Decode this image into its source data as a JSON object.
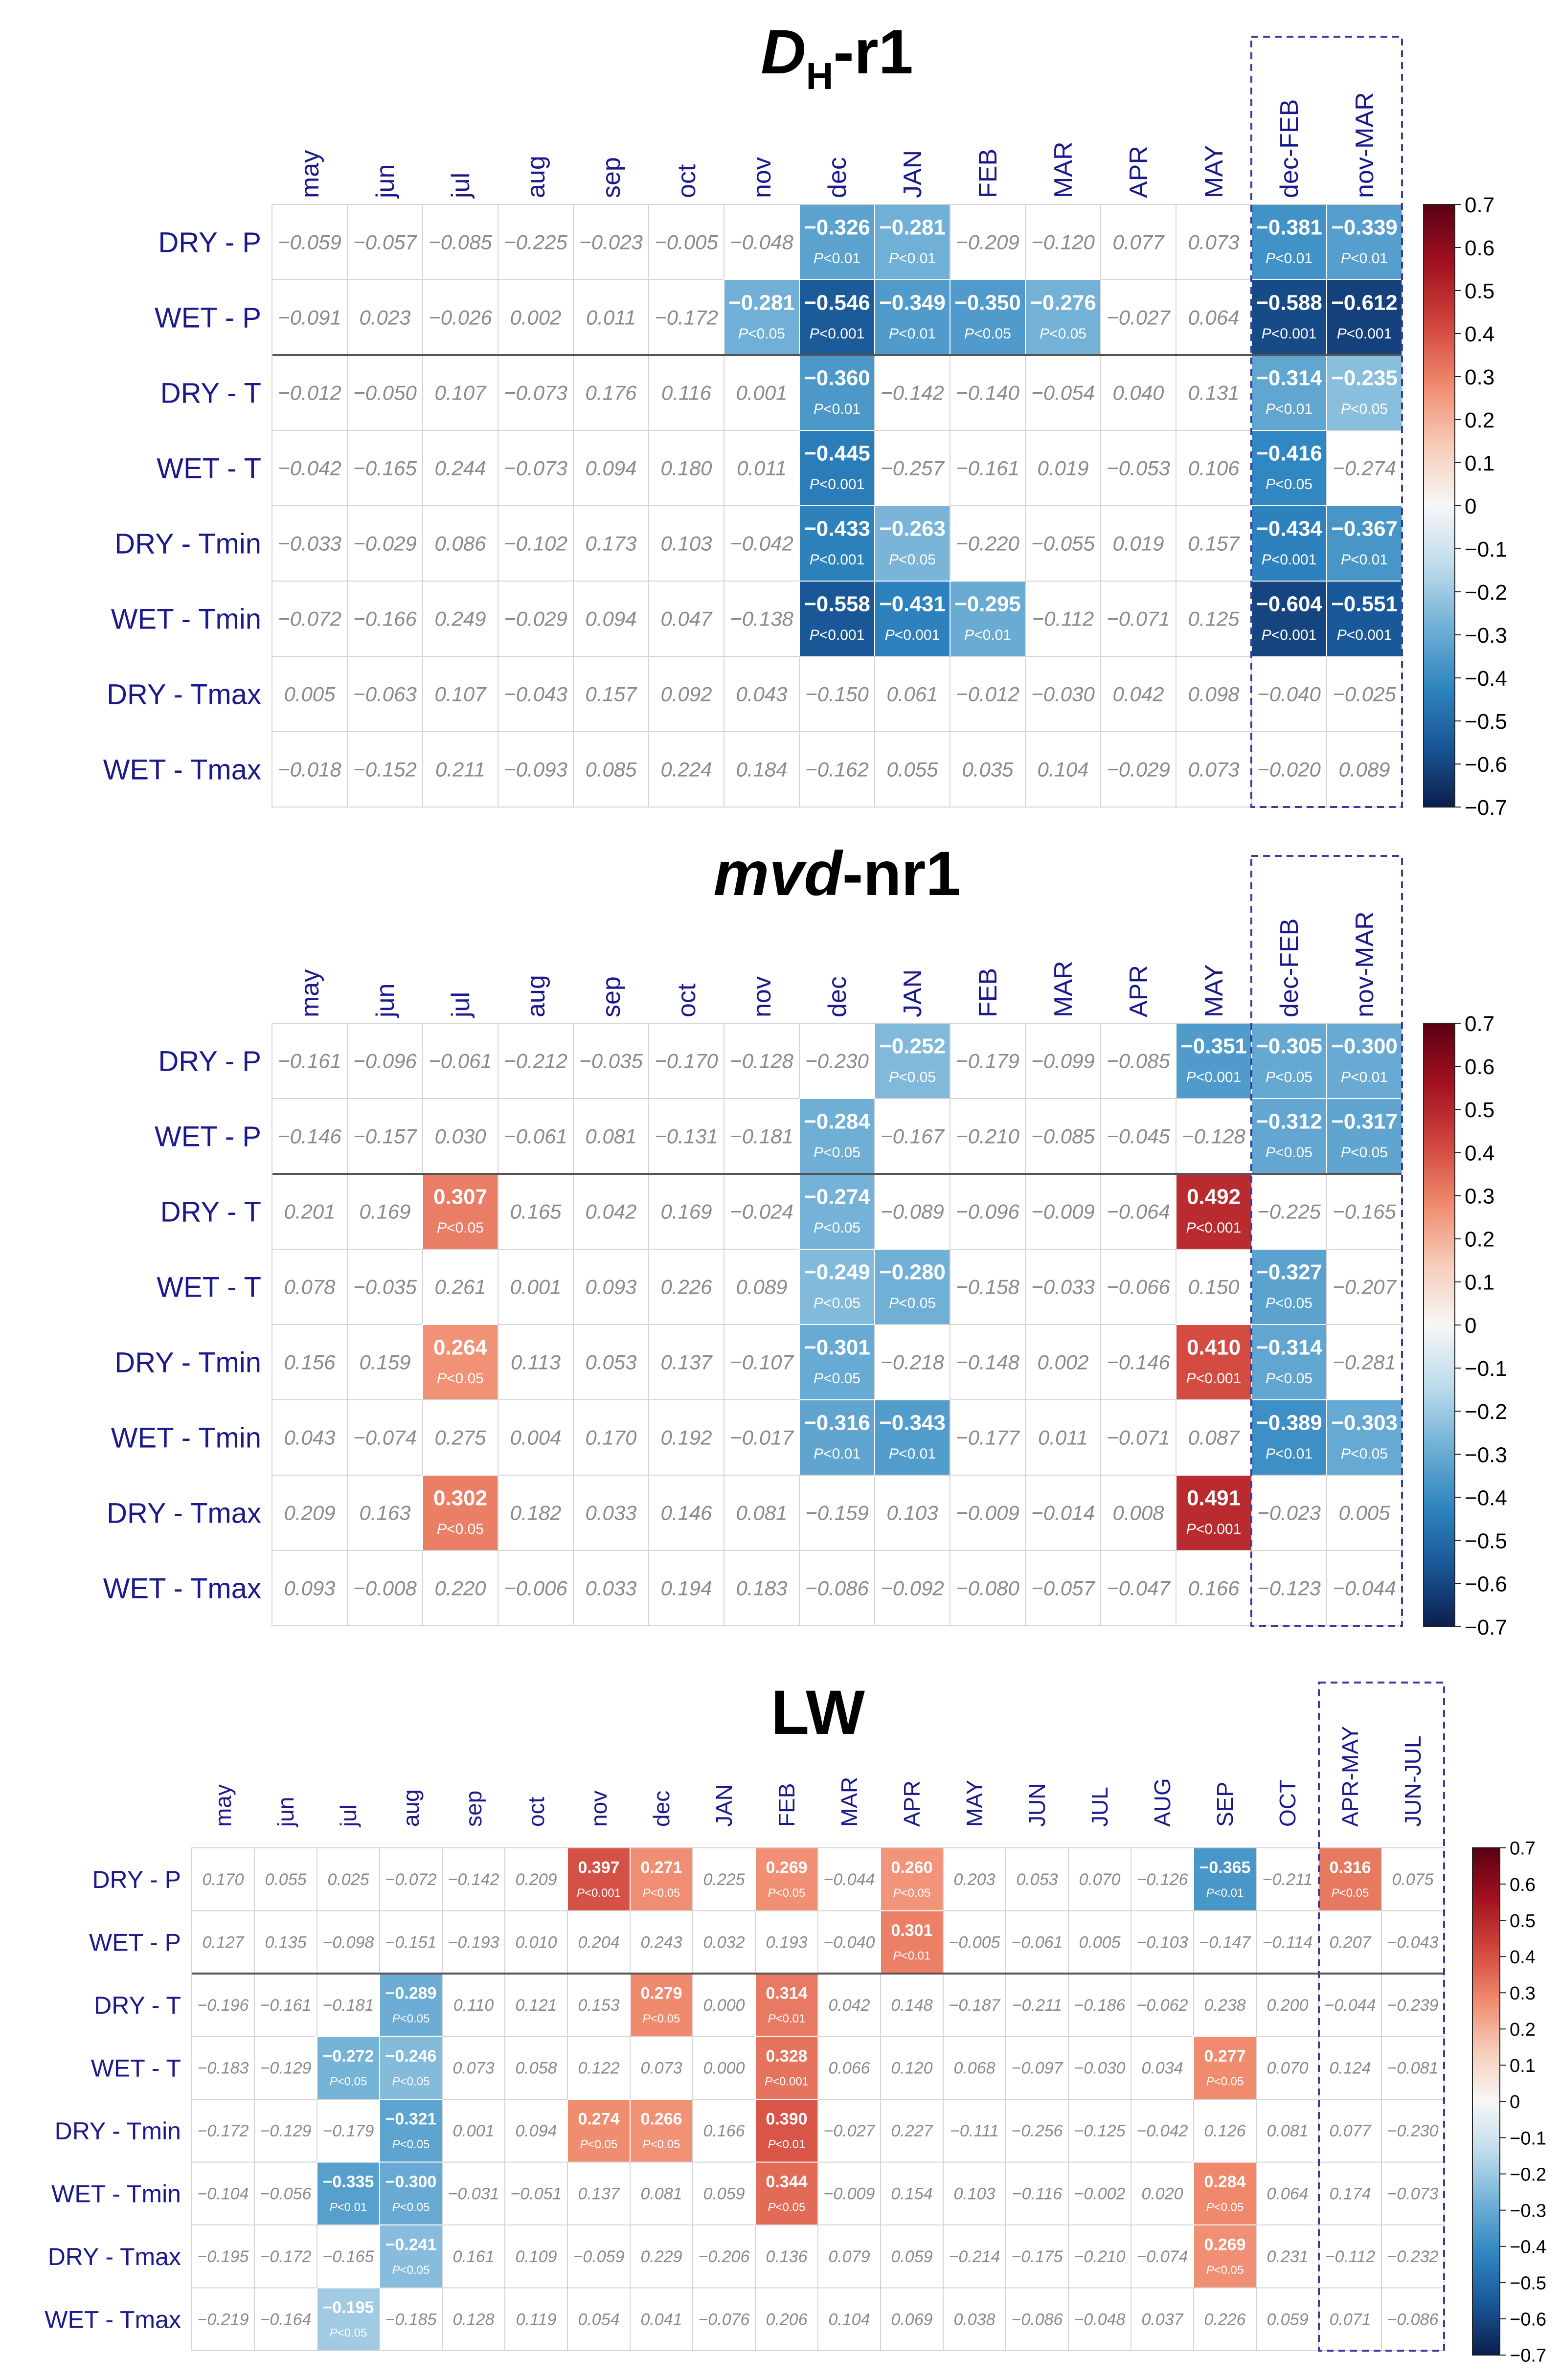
{
  "colors": {
    "label": "#1a1a8c",
    "title": "#000000",
    "grid": "#d4d4d4",
    "separator": "#555555",
    "dashed": "#3a3aa0",
    "nonsig_text": "#8a8a8a",
    "colormap": [
      "#0b1e4d",
      "#195696",
      "#2f86c0",
      "#71b0d6",
      "#bfdcec",
      "#f7f7f7",
      "#f7cdb9",
      "#f08a6e",
      "#d1463d",
      "#a2111f",
      "#5a0013"
    ]
  },
  "chart_data": [
    {
      "type": "heatmap",
      "title_italic": "D",
      "title_sub": "H",
      "title_rest": "-r1",
      "columns": [
        "may",
        "jun",
        "jul",
        "aug",
        "sep",
        "oct",
        "nov",
        "dec",
        "JAN",
        "FEB",
        "MAR",
        "APR",
        "MAY",
        "dec-FEB",
        "nov-MAR"
      ],
      "rows": [
        "DRY - P",
        "WET - P",
        "DRY - T",
        "WET - T",
        "DRY - Tmin",
        "WET - Tmin",
        "DRY - Tmax",
        "WET - Tmax"
      ],
      "values": [
        [
          "−0.059",
          "−0.057",
          "−0.085",
          "−0.225",
          "−0.023",
          "−0.005",
          "−0.048",
          "−0.326",
          "−0.281",
          "−0.209",
          "−0.120",
          "0.077",
          "0.073",
          "−0.381",
          "−0.339"
        ],
        [
          "−0.091",
          "0.023",
          "−0.026",
          "0.002",
          "0.011",
          "−0.172",
          "−0.281",
          "−0.546",
          "−0.349",
          "−0.350",
          "−0.276",
          "−0.027",
          "0.064",
          "−0.588",
          "−0.612"
        ],
        [
          "−0.012",
          "−0.050",
          "0.107",
          "−0.073",
          "0.176",
          "0.116",
          "0.001",
          "−0.360",
          "−0.142",
          "−0.140",
          "−0.054",
          "0.040",
          "0.131",
          "−0.314",
          "−0.235"
        ],
        [
          "−0.042",
          "−0.165",
          "0.244",
          "−0.073",
          "0.094",
          "0.180",
          "0.011",
          "−0.445",
          "−0.257",
          "−0.161",
          "0.019",
          "−0.053",
          "0.106",
          "−0.416",
          "−0.274"
        ],
        [
          "−0.033",
          "−0.029",
          "0.086",
          "−0.102",
          "0.173",
          "0.103",
          "−0.042",
          "−0.433",
          "−0.263",
          "−0.220",
          "−0.055",
          "0.019",
          "0.157",
          "−0.434",
          "−0.367"
        ],
        [
          "−0.072",
          "−0.166",
          "0.249",
          "−0.029",
          "0.094",
          "0.047",
          "−0.138",
          "−0.558",
          "−0.431",
          "−0.295",
          "−0.112",
          "−0.071",
          "0.125",
          "−0.604",
          "−0.551"
        ],
        [
          "0.005",
          "−0.063",
          "0.107",
          "−0.043",
          "0.157",
          "0.092",
          "0.043",
          "−0.150",
          "0.061",
          "−0.012",
          "−0.030",
          "0.042",
          "0.098",
          "−0.040",
          "−0.025"
        ],
        [
          "−0.018",
          "−0.152",
          "0.211",
          "−0.093",
          "0.085",
          "0.224",
          "0.184",
          "−0.162",
          "0.055",
          "0.035",
          "0.104",
          "−0.029",
          "0.073",
          "−0.020",
          "0.089"
        ]
      ],
      "significant": [
        {
          "row": 0,
          "col": 7,
          "p": "P<0.01"
        },
        {
          "row": 0,
          "col": 8,
          "p": "P<0.01"
        },
        {
          "row": 0,
          "col": 13,
          "p": "P<0.01"
        },
        {
          "row": 0,
          "col": 14,
          "p": "P<0.01"
        },
        {
          "row": 1,
          "col": 6,
          "p": "P<0.05"
        },
        {
          "row": 1,
          "col": 7,
          "p": "P<0.001"
        },
        {
          "row": 1,
          "col": 8,
          "p": "P<0.01"
        },
        {
          "row": 1,
          "col": 9,
          "p": "P<0.05"
        },
        {
          "row": 1,
          "col": 10,
          "p": "P<0.05"
        },
        {
          "row": 1,
          "col": 13,
          "p": "P<0.001"
        },
        {
          "row": 1,
          "col": 14,
          "p": "P<0.001"
        },
        {
          "row": 2,
          "col": 7,
          "p": "P<0.01"
        },
        {
          "row": 2,
          "col": 13,
          "p": "P<0.01"
        },
        {
          "row": 2,
          "col": 14,
          "p": "P<0.05"
        },
        {
          "row": 3,
          "col": 7,
          "p": "P<0.001"
        },
        {
          "row": 3,
          "col": 13,
          "p": "P<0.05"
        },
        {
          "row": 4,
          "col": 7,
          "p": "P<0.001"
        },
        {
          "row": 4,
          "col": 8,
          "p": "P<0.05"
        },
        {
          "row": 4,
          "col": 13,
          "p": "P<0.001"
        },
        {
          "row": 4,
          "col": 14,
          "p": "P<0.01"
        },
        {
          "row": 5,
          "col": 7,
          "p": "P<0.001"
        },
        {
          "row": 5,
          "col": 8,
          "p": "P<0.001"
        },
        {
          "row": 5,
          "col": 9,
          "p": "P<0.01"
        },
        {
          "row": 5,
          "col": 13,
          "p": "P<0.001"
        },
        {
          "row": 5,
          "col": 14,
          "p": "P<0.001"
        }
      ],
      "colorbar": {
        "min": -0.7,
        "max": 0.7,
        "ticks": [
          "0.7",
          "0.6",
          "0.5",
          "0.4",
          "0.3",
          "0.2",
          "0.1",
          "0",
          "−0.1",
          "−0.2",
          "−0.3",
          "−0.4",
          "−0.5",
          "−0.6",
          "−0.7"
        ]
      },
      "dashed_cols": [
        13,
        14
      ],
      "separator_after_row": 1
    },
    {
      "type": "heatmap",
      "title_italic": "mvd",
      "title_sub": "",
      "title_rest": "-nr1",
      "columns": [
        "may",
        "jun",
        "jul",
        "aug",
        "sep",
        "oct",
        "nov",
        "dec",
        "JAN",
        "FEB",
        "MAR",
        "APR",
        "MAY",
        "dec-FEB",
        "nov-MAR"
      ],
      "rows": [
        "DRY - P",
        "WET - P",
        "DRY - T",
        "WET - T",
        "DRY - Tmin",
        "WET - Tmin",
        "DRY - Tmax",
        "WET - Tmax"
      ],
      "values": [
        [
          "−0.161",
          "−0.096",
          "−0.061",
          "−0.212",
          "−0.035",
          "−0.170",
          "−0.128",
          "−0.230",
          "−0.252",
          "−0.179",
          "−0.099",
          "−0.085",
          "−0.351",
          "−0.305",
          "−0.300"
        ],
        [
          "−0.146",
          "−0.157",
          "0.030",
          "−0.061",
          "0.081",
          "−0.131",
          "−0.181",
          "−0.284",
          "−0.167",
          "−0.210",
          "−0.085",
          "−0.045",
          "−0.128",
          "−0.312",
          "−0.317"
        ],
        [
          "0.201",
          "0.169",
          "0.307",
          "0.165",
          "0.042",
          "0.169",
          "−0.024",
          "−0.274",
          "−0.089",
          "−0.096",
          "−0.009",
          "−0.064",
          "0.492",
          "−0.225",
          "−0.165"
        ],
        [
          "0.078",
          "−0.035",
          "0.261",
          "0.001",
          "0.093",
          "0.226",
          "0.089",
          "−0.249",
          "−0.280",
          "−0.158",
          "−0.033",
          "−0.066",
          "0.150",
          "−0.327",
          "−0.207"
        ],
        [
          "0.156",
          "0.159",
          "0.264",
          "0.113",
          "0.053",
          "0.137",
          "−0.107",
          "−0.301",
          "−0.218",
          "−0.148",
          "0.002",
          "−0.146",
          "0.410",
          "−0.314",
          "−0.281"
        ],
        [
          "0.043",
          "−0.074",
          "0.275",
          "0.004",
          "0.170",
          "0.192",
          "−0.017",
          "−0.316",
          "−0.343",
          "−0.177",
          "0.011",
          "−0.071",
          "0.087",
          "−0.389",
          "−0.303"
        ],
        [
          "0.209",
          "0.163",
          "0.302",
          "0.182",
          "0.033",
          "0.146",
          "0.081",
          "−0.159",
          "0.103",
          "−0.009",
          "−0.014",
          "0.008",
          "0.491",
          "−0.023",
          "0.005"
        ],
        [
          "0.093",
          "−0.008",
          "0.220",
          "−0.006",
          "0.033",
          "0.194",
          "0.183",
          "−0.086",
          "−0.092",
          "−0.080",
          "−0.057",
          "−0.047",
          "0.166",
          "−0.123",
          "−0.044"
        ]
      ],
      "significant": [
        {
          "row": 0,
          "col": 8,
          "p": "P<0.05"
        },
        {
          "row": 0,
          "col": 12,
          "p": "P<0.001"
        },
        {
          "row": 0,
          "col": 13,
          "p": "P<0.05"
        },
        {
          "row": 0,
          "col": 14,
          "p": "P<0.01"
        },
        {
          "row": 1,
          "col": 7,
          "p": "P<0.05"
        },
        {
          "row": 1,
          "col": 13,
          "p": "P<0.05"
        },
        {
          "row": 1,
          "col": 14,
          "p": "P<0.05"
        },
        {
          "row": 2,
          "col": 2,
          "p": "P<0.05"
        },
        {
          "row": 2,
          "col": 7,
          "p": "P<0.05"
        },
        {
          "row": 2,
          "col": 12,
          "p": "P<0.001"
        },
        {
          "row": 3,
          "col": 7,
          "p": "P<0.05"
        },
        {
          "row": 3,
          "col": 8,
          "p": "P<0.05"
        },
        {
          "row": 3,
          "col": 13,
          "p": "P<0.05"
        },
        {
          "row": 4,
          "col": 2,
          "p": "P<0.05"
        },
        {
          "row": 4,
          "col": 7,
          "p": "P<0.05"
        },
        {
          "row": 4,
          "col": 12,
          "p": "P<0.001"
        },
        {
          "row": 4,
          "col": 13,
          "p": "P<0.05"
        },
        {
          "row": 5,
          "col": 7,
          "p": "P<0.01"
        },
        {
          "row": 5,
          "col": 8,
          "p": "P<0.01"
        },
        {
          "row": 5,
          "col": 13,
          "p": "P<0.01"
        },
        {
          "row": 5,
          "col": 14,
          "p": "P<0.05"
        },
        {
          "row": 6,
          "col": 2,
          "p": "P<0.05"
        },
        {
          "row": 6,
          "col": 12,
          "p": "P<0.001"
        }
      ],
      "colorbar": {
        "min": -0.7,
        "max": 0.7,
        "ticks": [
          "0.7",
          "0.6",
          "0.5",
          "0.4",
          "0.3",
          "0.2",
          "0.1",
          "0",
          "−0.1",
          "−0.2",
          "−0.3",
          "−0.4",
          "−0.5",
          "−0.6",
          "−0.7"
        ]
      },
      "dashed_cols": [
        13,
        14
      ],
      "separator_after_row": 1
    },
    {
      "type": "heatmap",
      "title_italic": "",
      "title_sub": "",
      "title_rest": "LW",
      "columns": [
        "may",
        "jun",
        "jul",
        "aug",
        "sep",
        "oct",
        "nov",
        "dec",
        "JAN",
        "FEB",
        "MAR",
        "APR",
        "MAY",
        "JUN",
        "JUL",
        "AUG",
        "SEP",
        "OCT",
        "APR-MAY",
        "JUN-JUL"
      ],
      "rows": [
        "DRY - P",
        "WET - P",
        "DRY - T",
        "WET - T",
        "DRY - Tmin",
        "WET - Tmin",
        "DRY - Tmax",
        "WET - Tmax"
      ],
      "values": [
        [
          "0.170",
          "0.055",
          "0.025",
          "−0.072",
          "−0.142",
          "0.209",
          "0.397",
          "0.271",
          "0.225",
          "0.269",
          "−0.044",
          "0.260",
          "0.203",
          "0.053",
          "0.070",
          "−0.126",
          "−0.365",
          "−0.211",
          "0.316",
          "0.075"
        ],
        [
          "0.127",
          "0.135",
          "−0.098",
          "−0.151",
          "−0.193",
          "0.010",
          "0.204",
          "0.243",
          "0.032",
          "0.193",
          "−0.040",
          "0.301",
          "−0.005",
          "−0.061",
          "0.005",
          "−0.103",
          "−0.147",
          "−0.114",
          "0.207",
          "−0.043"
        ],
        [
          "−0.196",
          "−0.161",
          "−0.181",
          "−0.289",
          "0.110",
          "0.121",
          "0.153",
          "0.279",
          "0.000",
          "0.314",
          "0.042",
          "0.148",
          "−0.187",
          "−0.211",
          "−0.186",
          "−0.062",
          "0.238",
          "0.200",
          "−0.044",
          "−0.239"
        ],
        [
          "−0.183",
          "−0.129",
          "−0.272",
          "−0.246",
          "0.073",
          "0.058",
          "0.122",
          "0.073",
          "0.000",
          "0.328",
          "0.066",
          "0.120",
          "0.068",
          "−0.097",
          "−0.030",
          "0.034",
          "0.277",
          "0.070",
          "0.124",
          "−0.081"
        ],
        [
          "−0.172",
          "−0.129",
          "−0.179",
          "−0.321",
          "0.001",
          "0.094",
          "0.274",
          "0.266",
          "0.166",
          "0.390",
          "−0.027",
          "0.227",
          "−0.111",
          "−0.256",
          "−0.125",
          "−0.042",
          "0.126",
          "0.081",
          "0.077",
          "−0.230"
        ],
        [
          "−0.104",
          "−0.056",
          "−0.335",
          "−0.300",
          "−0.031",
          "−0.051",
          "0.137",
          "0.081",
          "0.059",
          "0.344",
          "−0.009",
          "0.154",
          "0.103",
          "−0.116",
          "−0.002",
          "0.020",
          "0.284",
          "0.064",
          "0.174",
          "−0.073"
        ],
        [
          "−0.195",
          "−0.172",
          "−0.165",
          "−0.241",
          "0.161",
          "0.109",
          "−0.059",
          "0.229",
          "−0.206",
          "0.136",
          "0.079",
          "0.059",
          "−0.214",
          "−0.175",
          "−0.210",
          "−0.074",
          "0.269",
          "0.231",
          "−0.112",
          "−0.232"
        ],
        [
          "−0.219",
          "−0.164",
          "−0.195",
          "−0.185",
          "0.128",
          "0.119",
          "0.054",
          "0.041",
          "−0.076",
          "0.206",
          "0.104",
          "0.069",
          "0.038",
          "−0.086",
          "−0.048",
          "0.037",
          "0.226",
          "0.059",
          "0.071",
          "−0.086"
        ]
      ],
      "significant": [
        {
          "row": 0,
          "col": 6,
          "p": "P<0.001"
        },
        {
          "row": 0,
          "col": 7,
          "p": "P<0.05"
        },
        {
          "row": 0,
          "col": 9,
          "p": "P<0.05"
        },
        {
          "row": 0,
          "col": 11,
          "p": "P<0.05"
        },
        {
          "row": 0,
          "col": 16,
          "p": "P<0.01"
        },
        {
          "row": 0,
          "col": 18,
          "p": "P<0.05"
        },
        {
          "row": 1,
          "col": 11,
          "p": "P<0.01"
        },
        {
          "row": 2,
          "col": 3,
          "p": "P<0.05"
        },
        {
          "row": 2,
          "col": 7,
          "p": "P<0.05"
        },
        {
          "row": 2,
          "col": 9,
          "p": "P<0.01"
        },
        {
          "row": 3,
          "col": 2,
          "p": "P<0.05"
        },
        {
          "row": 3,
          "col": 3,
          "p": "P<0.05"
        },
        {
          "row": 3,
          "col": 9,
          "p": "P<0.001"
        },
        {
          "row": 3,
          "col": 16,
          "p": "P<0.05"
        },
        {
          "row": 4,
          "col": 3,
          "p": "P<0.05"
        },
        {
          "row": 4,
          "col": 6,
          "p": "P<0.05"
        },
        {
          "row": 4,
          "col": 7,
          "p": "P<0.05"
        },
        {
          "row": 4,
          "col": 9,
          "p": "P<0.01"
        },
        {
          "row": 5,
          "col": 2,
          "p": "P<0.01"
        },
        {
          "row": 5,
          "col": 3,
          "p": "P<0.05"
        },
        {
          "row": 5,
          "col": 9,
          "p": "P<0.05"
        },
        {
          "row": 5,
          "col": 16,
          "p": "P<0.05"
        },
        {
          "row": 6,
          "col": 3,
          "p": "P<0.05"
        },
        {
          "row": 6,
          "col": 16,
          "p": "P<0.05"
        },
        {
          "row": 7,
          "col": 2,
          "p": "P<0.05"
        }
      ],
      "colorbar": {
        "min": -0.7,
        "max": 0.7,
        "ticks": [
          "0.7",
          "0.6",
          "0.5",
          "0.4",
          "0.3",
          "0.2",
          "0.1",
          "0",
          "−0.1",
          "−0.2",
          "−0.3",
          "−0.4",
          "−0.5",
          "−0.6",
          "−0.7"
        ]
      },
      "dashed_cols": [
        18,
        19
      ],
      "separator_after_row": 1
    }
  ]
}
